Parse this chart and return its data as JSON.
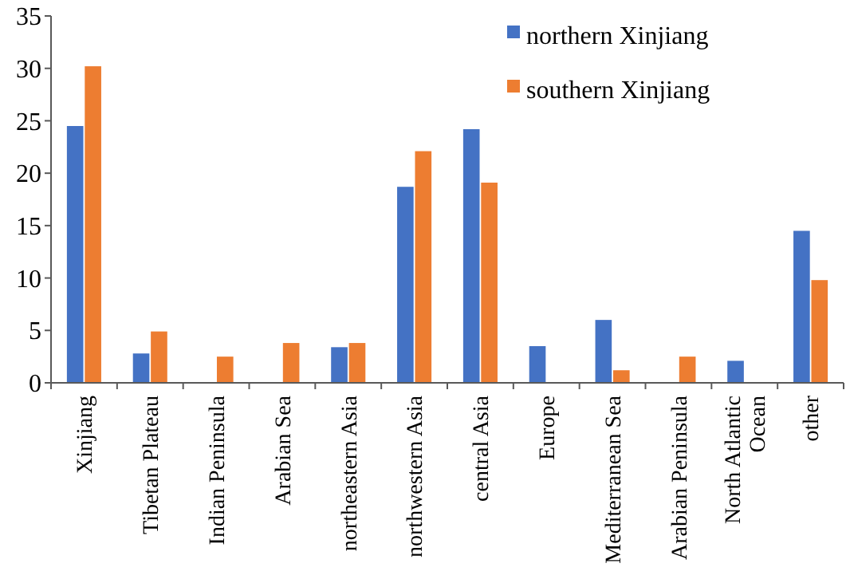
{
  "chart_data": {
    "type": "bar",
    "categories": [
      "Xinjiang",
      "Tibetan Plateau",
      "Indian Peninsula",
      "Arabian Sea",
      "northeastern Asia",
      "northwestern Asia",
      "central Asia",
      "Europe",
      "Mediterranean Sea",
      "Arabian Peninsula",
      "North Atlantic Ocean",
      "other"
    ],
    "series": [
      {
        "name": "northern Xinjiang",
        "color": "#4472c4",
        "values": [
          24.5,
          2.8,
          0,
          0,
          3.4,
          18.7,
          24.2,
          3.5,
          6.0,
          0,
          2.1,
          14.5
        ]
      },
      {
        "name": "southern Xinjiang",
        "color": "#ed7d31",
        "values": [
          30.2,
          4.9,
          2.5,
          3.8,
          3.8,
          22.1,
          19.1,
          0,
          1.2,
          2.5,
          0,
          9.8
        ]
      }
    ],
    "ylim": [
      0,
      35
    ],
    "yticks": [
      0,
      5,
      10,
      15,
      20,
      25,
      30,
      35
    ],
    "grid": false,
    "legend": "top right"
  }
}
